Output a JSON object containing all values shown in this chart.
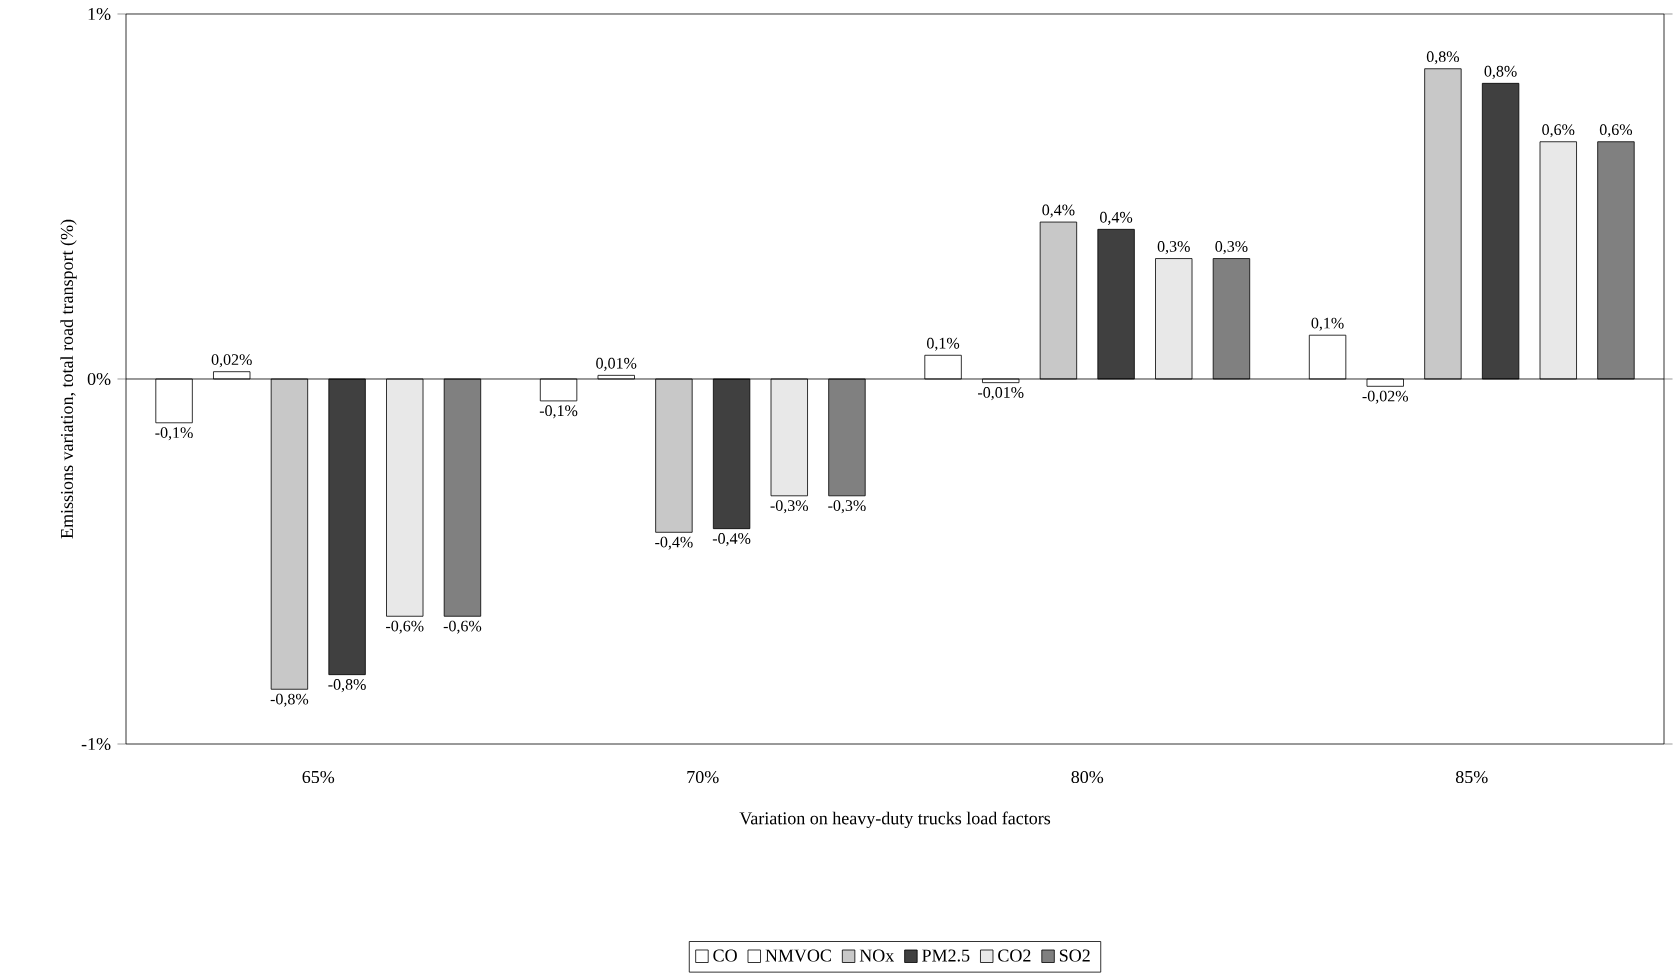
{
  "chart_data": {
    "type": "bar",
    "xlabel": "Variation on heavy-duty trucks load factors",
    "ylabel": "Emissions variation, total road transport (%)",
    "categories": [
      "65%",
      "70%",
      "80%",
      "85%"
    ],
    "series": [
      {
        "name": "CO",
        "color": "#ffffff",
        "values": [
          -0.12,
          -0.06,
          0.065,
          0.12
        ],
        "value_labels": [
          "-0,1%",
          "-0,1%",
          "0,1%",
          "0,1%"
        ]
      },
      {
        "name": "NMVOC",
        "color": "#ffffff",
        "values": [
          0.02,
          0.01,
          -0.01,
          -0.02
        ],
        "value_labels": [
          "0,02%",
          "0,01%",
          "-0,01%",
          "-0,02%"
        ]
      },
      {
        "name": "NOx",
        "color": "#c8c8c8",
        "values": [
          -0.85,
          -0.42,
          0.43,
          0.85
        ],
        "value_labels": [
          "-0,8%",
          "-0,4%",
          "0,4%",
          "0,8%"
        ]
      },
      {
        "name": "PM2.5",
        "color": "#404040",
        "values": [
          -0.81,
          -0.41,
          0.41,
          0.81
        ],
        "value_labels": [
          "-0,8%",
          "-0,4%",
          "0,4%",
          "0,8%"
        ]
      },
      {
        "name": "CO2",
        "color": "#e8e8e8",
        "values": [
          -0.65,
          -0.32,
          0.33,
          0.65
        ],
        "value_labels": [
          "-0,6%",
          "-0,3%",
          "0,3%",
          "0,6%"
        ]
      },
      {
        "name": "SO2",
        "color": "#808080",
        "values": [
          -0.65,
          -0.32,
          0.33,
          0.65
        ],
        "value_labels": [
          "-0,6%",
          "-0,3%",
          "0,3%",
          "0,6%"
        ]
      }
    ],
    "ylim": [
      -1,
      1
    ],
    "yticks": [
      {
        "value": -1,
        "label": "-1%"
      },
      {
        "value": 0,
        "label": "0%"
      },
      {
        "value": 1,
        "label": "1%"
      }
    ],
    "ref_lines": [
      {
        "axis": "y",
        "value": 0
      }
    ],
    "grid": false,
    "legend": "bottom"
  }
}
